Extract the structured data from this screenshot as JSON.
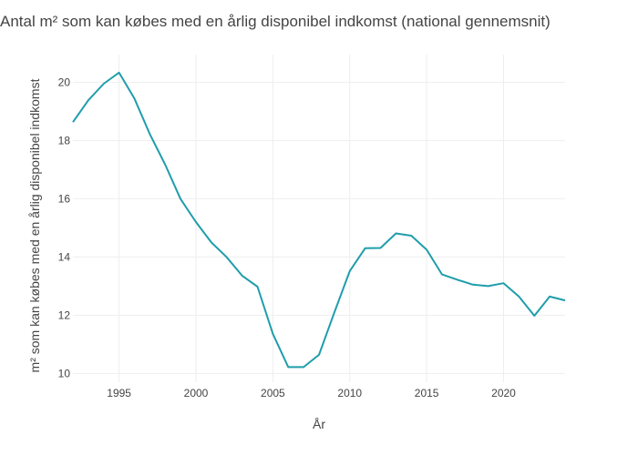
{
  "chart_data": {
    "type": "line",
    "title": "Antal m² som kan købes med en årlig disponibel indkomst (national gennemsnit)",
    "xlabel": "År",
    "ylabel": "m² som kan købes med en årlig disponibel indkomst",
    "xlim": [
      1992,
      2024
    ],
    "ylim": [
      9.7,
      20.95
    ],
    "x_ticks": [
      1995,
      2000,
      2005,
      2010,
      2015,
      2020
    ],
    "y_ticks": [
      10,
      12,
      14,
      16,
      18,
      20
    ],
    "grid": true,
    "line_color": "#1f9dab",
    "series": [
      {
        "x": [
          1992,
          1993,
          1994,
          1995,
          1996,
          1997,
          1998,
          1999,
          2000,
          2001,
          2002,
          2003,
          2004,
          2005,
          2006,
          2007,
          2008,
          2009,
          2010,
          2011,
          2012,
          2013,
          2014,
          2015,
          2016,
          2017,
          2018,
          2019,
          2020,
          2021,
          2022,
          2023,
          2024
        ],
        "values": [
          18.63,
          19.38,
          19.95,
          20.33,
          19.44,
          18.22,
          17.17,
          15.99,
          15.2,
          14.5,
          13.99,
          13.36,
          12.98,
          11.36,
          10.22,
          10.22,
          10.64,
          12.1,
          13.52,
          14.3,
          14.31,
          14.81,
          14.73,
          14.25,
          13.4,
          13.22,
          13.05,
          13.0,
          13.1,
          12.64,
          11.98,
          12.64,
          12.51
        ]
      }
    ]
  }
}
